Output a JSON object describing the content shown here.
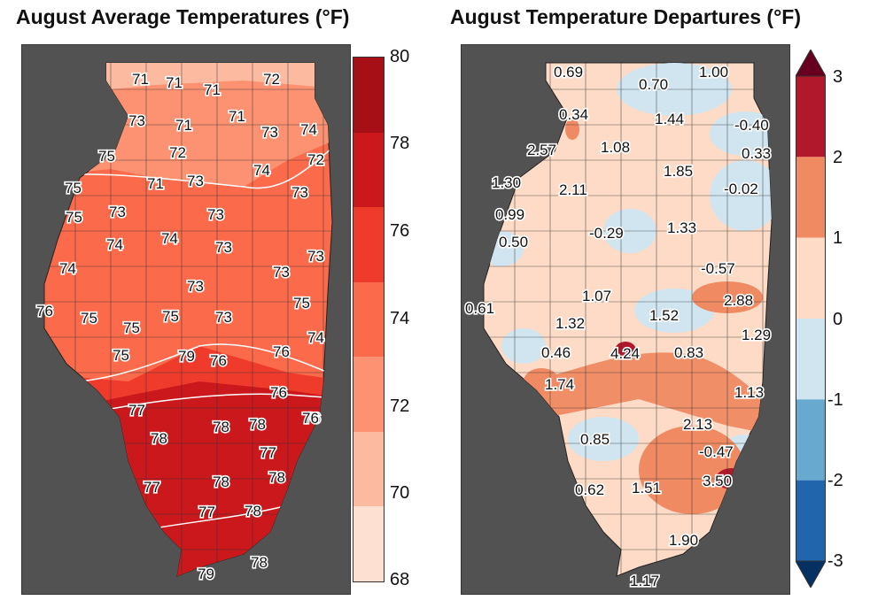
{
  "left_panel": {
    "title": "August Average Temperatures (°F)",
    "colorbar_ticks": [
      "80",
      "78",
      "76",
      "74",
      "72",
      "70",
      "68"
    ],
    "colorbar_colors": [
      "#a50f15",
      "#cb181d",
      "#ef3b2c",
      "#fb6a4a",
      "#fc9272",
      "#fcbba1",
      "#fee0d2"
    ],
    "station_values": [
      "71",
      "71",
      "71",
      "72",
      "73",
      "71",
      "71",
      "73",
      "74",
      "75",
      "72",
      "72",
      "75",
      "71",
      "73",
      "74",
      "73",
      "75",
      "73",
      "73",
      "74",
      "74",
      "73",
      "73",
      "74",
      "73",
      "73",
      "76",
      "75",
      "75",
      "75",
      "73",
      "75",
      "75",
      "79",
      "76",
      "76",
      "74",
      "77",
      "76",
      "76",
      "78",
      "78",
      "78",
      "76",
      "77",
      "77",
      "78",
      "78",
      "77",
      "78",
      "79",
      "78"
    ]
  },
  "right_panel": {
    "title": "August Temperature Departures (°F)",
    "colorbar_ticks": [
      "3",
      "2",
      "1",
      "0",
      "-1",
      "-2",
      "-3"
    ],
    "colorbar_colors": [
      "#b2182b",
      "#ef8a62",
      "#fddbc7",
      "#d1e5f0",
      "#67a9cf",
      "#2166ac"
    ],
    "station_values": [
      "0.69",
      "1.00",
      "0.70",
      "0.34",
      "1.44",
      "-0.40",
      "2.57",
      "1.08",
      "0.33",
      "1.85",
      "1.30",
      "2.11",
      "-0.02",
      "0.99",
      "1.33",
      "-0.29",
      "0.50",
      "-0.57",
      "1.07",
      "2.88",
      "0.61",
      "1.32",
      "1.52",
      "1.29",
      "0.46",
      "4.24",
      "0.83",
      "1.74",
      "1.13",
      "2.13",
      "0.85",
      "-0.47",
      "3.50",
      "0.62",
      "1.51",
      "1.90",
      "1.17"
    ]
  }
}
